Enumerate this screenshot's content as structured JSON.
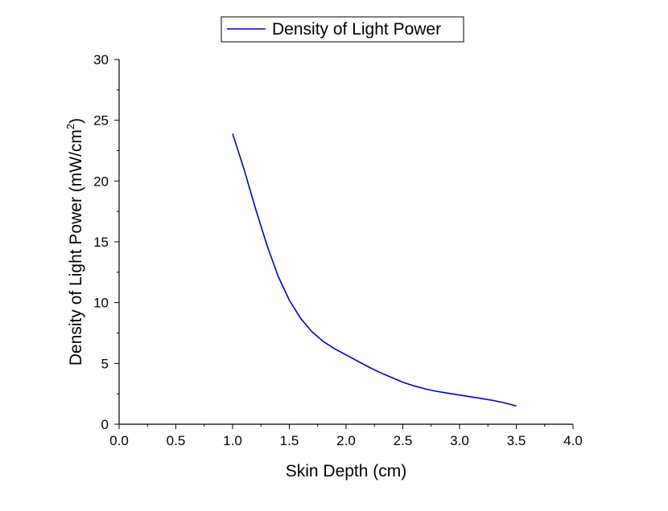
{
  "chart_data": {
    "type": "line",
    "xlabel": "Skin Depth (cm)",
    "ylabel": "Density of Light Power (mW/cm²)",
    "ylabel_base": "Density of Light Power (mW/cm",
    "ylabel_sup": "2",
    "ylabel_close": ")",
    "xlim": [
      0,
      4
    ],
    "ylim": [
      0,
      30
    ],
    "x_ticks": [
      "0.0",
      "0.5",
      "1.0",
      "1.5",
      "2.0",
      "2.5",
      "3.0",
      "3.5",
      "4.0"
    ],
    "y_ticks": [
      "0",
      "5",
      "10",
      "15",
      "20",
      "25",
      "30"
    ],
    "legend_position": "top-center",
    "grid": false,
    "series": [
      {
        "name": "Density of Light Power",
        "color": "#0000cc",
        "x": [
          1.0,
          1.1,
          1.2,
          1.3,
          1.4,
          1.5,
          1.6,
          1.7,
          1.8,
          1.9,
          2.0,
          2.1,
          2.2,
          2.3,
          2.4,
          2.5,
          2.6,
          2.7,
          2.8,
          2.9,
          3.0,
          3.1,
          3.2,
          3.3,
          3.4,
          3.5
        ],
        "y": [
          23.9,
          21.0,
          17.8,
          14.8,
          12.2,
          10.2,
          8.7,
          7.6,
          6.8,
          6.2,
          5.7,
          5.2,
          4.7,
          4.25,
          3.85,
          3.45,
          3.15,
          2.9,
          2.7,
          2.55,
          2.4,
          2.25,
          2.1,
          1.95,
          1.75,
          1.5
        ]
      }
    ]
  }
}
